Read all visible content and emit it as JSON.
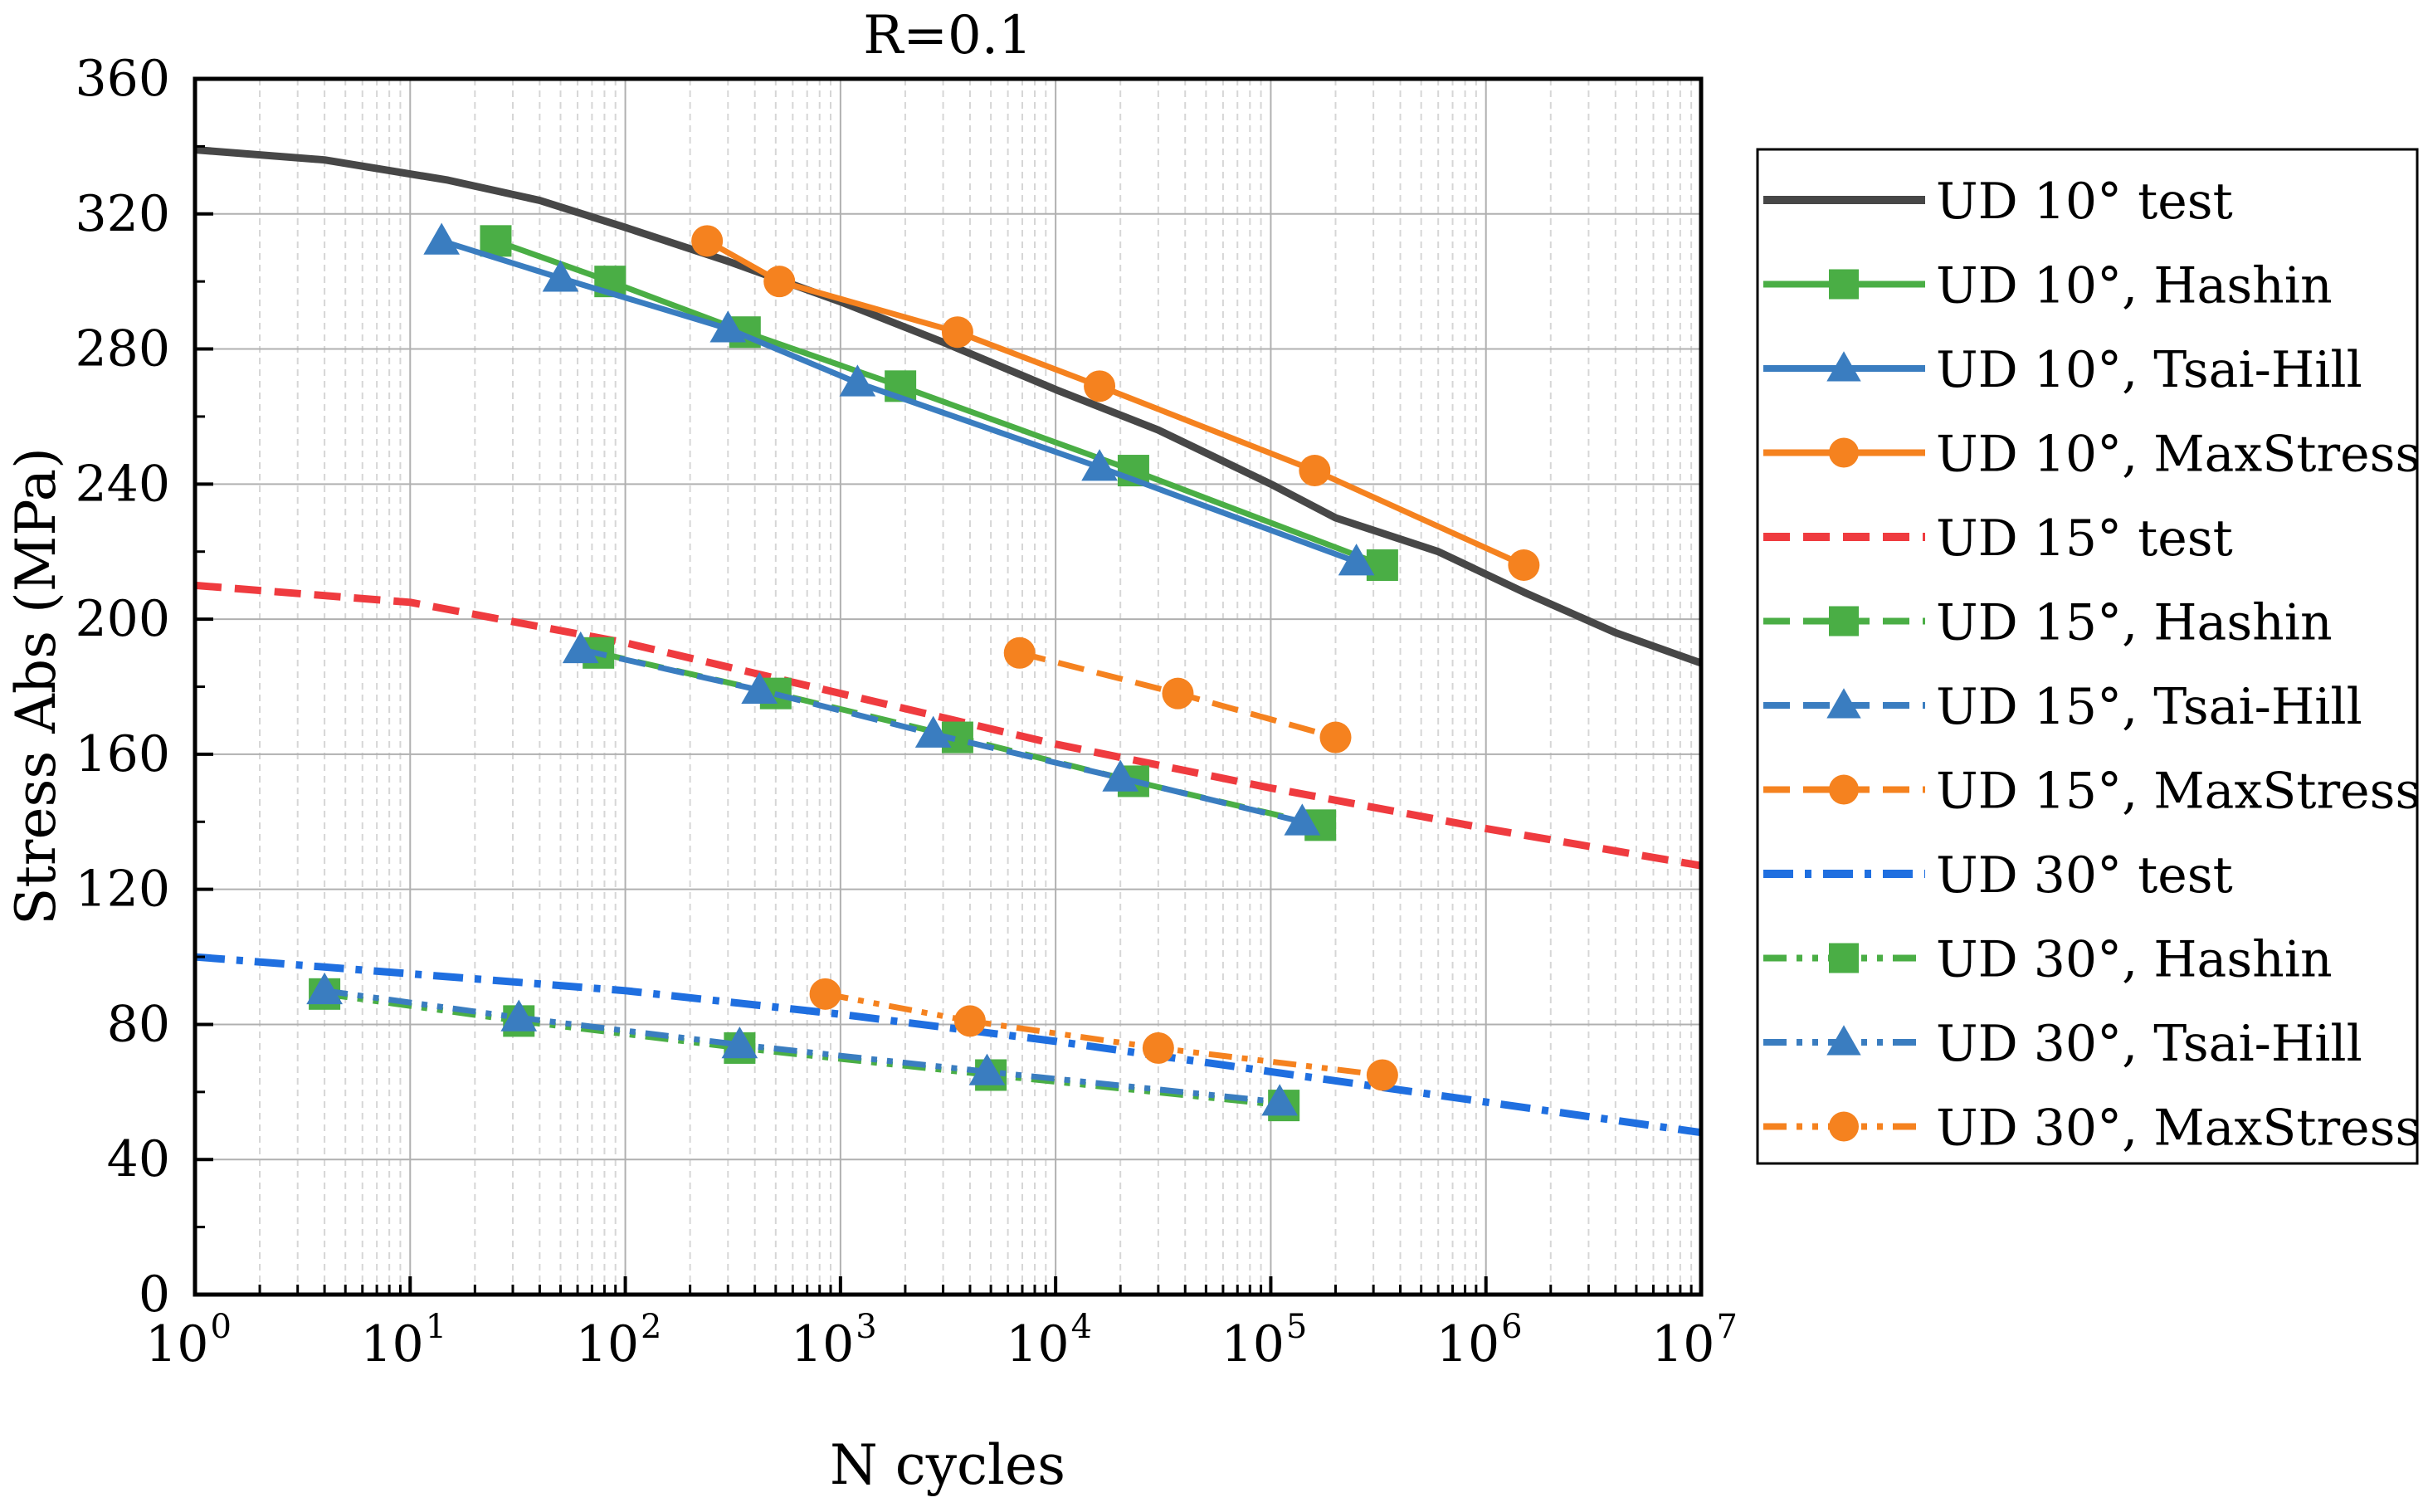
{
  "chart_data": {
    "type": "line",
    "title": "R=0.1",
    "xlabel": "N cycles",
    "ylabel": "Stress Abs (MPa)",
    "xscale": "log",
    "xlim": [
      1,
      10000000
    ],
    "ylim": [
      0,
      360
    ],
    "grid": true,
    "legend_position": "right",
    "x_ticks": [
      {
        "value": 1,
        "base": "10",
        "exp": "0"
      },
      {
        "value": 10,
        "base": "10",
        "exp": "1"
      },
      {
        "value": 100,
        "base": "10",
        "exp": "2"
      },
      {
        "value": 1000,
        "base": "10",
        "exp": "3"
      },
      {
        "value": 10000,
        "base": "10",
        "exp": "4"
      },
      {
        "value": 100000,
        "base": "10",
        "exp": "5"
      },
      {
        "value": 1000000,
        "base": "10",
        "exp": "6"
      },
      {
        "value": 10000000,
        "base": "10",
        "exp": "7"
      }
    ],
    "y_ticks": [
      0,
      40,
      80,
      120,
      160,
      200,
      240,
      280,
      320,
      360
    ],
    "series": [
      {
        "name": "UD 10° test",
        "color": "#474747",
        "dash": "solid",
        "marker": "none",
        "width": 9,
        "x": [
          1,
          4,
          15,
          40,
          100,
          300,
          1000,
          3000,
          10000,
          30000,
          100000,
          200000,
          600000,
          1500000,
          4000000,
          10000000
        ],
        "y": [
          339,
          336,
          330,
          324,
          316,
          306,
          294,
          282,
          268,
          256,
          240,
          230,
          220,
          208,
          196,
          187
        ]
      },
      {
        "name": "UD 10°, Hashin",
        "color": "#4aae45",
        "dash": "solid",
        "marker": "square",
        "width": 7,
        "x": [
          25,
          85,
          360,
          1900,
          23000,
          330000
        ],
        "y": [
          312,
          300,
          285,
          269,
          244,
          216
        ]
      },
      {
        "name": "UD 10°, Tsai-Hill",
        "color": "#3a7dc0",
        "dash": "solid",
        "marker": "triangle",
        "width": 7,
        "x": [
          14,
          50,
          300,
          1200,
          16000,
          250000
        ],
        "y": [
          312,
          301,
          286,
          270,
          245,
          217
        ]
      },
      {
        "name": "UD 10°, MaxStress",
        "color": "#f5821f",
        "dash": "solid",
        "marker": "circle",
        "width": 7,
        "x": [
          240,
          520,
          3500,
          16000,
          160000,
          1500000
        ],
        "y": [
          312,
          300,
          285,
          269,
          244,
          216
        ]
      },
      {
        "name": "UD 15° test",
        "color": "#ef3b3f",
        "dash": "dash",
        "marker": "none",
        "width": 9,
        "x": [
          1,
          10,
          100,
          1000,
          10000,
          100000,
          1000000,
          10000000
        ],
        "y": [
          210,
          205,
          193,
          178,
          163,
          150,
          138,
          127
        ]
      },
      {
        "name": "UD 15°, Hashin",
        "color": "#4aae45",
        "dash": "dash",
        "marker": "square",
        "width": 7,
        "x": [
          75,
          500,
          3500,
          23000,
          170000
        ],
        "y": [
          190,
          178,
          165,
          152,
          139
        ]
      },
      {
        "name": "UD 15°, Tsai-Hill",
        "color": "#3a7dc0",
        "dash": "dash",
        "marker": "triangle",
        "width": 7,
        "x": [
          62,
          420,
          2700,
          20000,
          140000
        ],
        "y": [
          191,
          179,
          166,
          153,
          140
        ]
      },
      {
        "name": "UD 15°, MaxStress",
        "color": "#f5821f",
        "dash": "dash",
        "marker": "circle",
        "width": 7,
        "x": [
          6800,
          37000,
          200000
        ],
        "y": [
          190,
          178,
          165
        ]
      },
      {
        "name": "UD 30° test",
        "color": "#1f6fe0",
        "dash": "dashdot",
        "marker": "none",
        "width": 9,
        "x": [
          1,
          10,
          100,
          1000,
          10000,
          100000,
          1000000,
          10000000
        ],
        "y": [
          100,
          95,
          90,
          83,
          75,
          66,
          57,
          48
        ]
      },
      {
        "name": "UD 30°, Hashin",
        "color": "#4aae45",
        "dash": "dashdotdot",
        "marker": "square",
        "width": 7,
        "x": [
          4,
          32,
          340,
          5000,
          115000
        ],
        "y": [
          89,
          81,
          73,
          65,
          56
        ]
      },
      {
        "name": "UD 30°, Tsai-Hill",
        "color": "#3a7dc0",
        "dash": "dashdotdot",
        "marker": "triangle",
        "width": 7,
        "x": [
          4,
          32,
          340,
          4800,
          110000
        ],
        "y": [
          90,
          82,
          74,
          66,
          57
        ]
      },
      {
        "name": "UD 30°, MaxStress",
        "color": "#f5821f",
        "dash": "dashdotdot",
        "marker": "circle",
        "width": 7,
        "x": [
          850,
          4000,
          30000,
          330000
        ],
        "y": [
          89,
          81,
          73,
          65
        ]
      }
    ]
  }
}
